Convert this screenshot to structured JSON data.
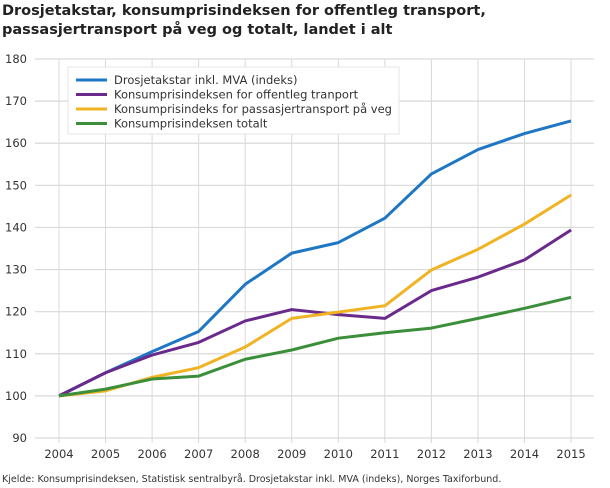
{
  "chart_data": {
    "type": "line",
    "title": "Drosjetakstar, konsumprisindeksen for offentleg transport, passasjertransport på veg og totalt, landet i alt",
    "source": "Kjelde: Konsumprisindeksen, Statistisk sentralbyrå. Drosjetakstar inkl. MVA (indeks), Norges Taxiforbund.",
    "x": [
      "2004",
      "2005",
      "2006",
      "2007",
      "2008",
      "2009",
      "2010",
      "2011",
      "2012",
      "2013",
      "2014",
      "2015"
    ],
    "ylim": [
      90,
      180
    ],
    "yticks": [
      90,
      100,
      110,
      120,
      130,
      140,
      150,
      160,
      170,
      180
    ],
    "grid": true,
    "legend_position": "top-left",
    "series": [
      {
        "name": "Drosjetakstar inkl. MVA (indeks)",
        "color": "#1f77c4",
        "values": [
          100,
          105.5,
          110.5,
          115.3,
          126.5,
          133.9,
          136.4,
          142.2,
          152.7,
          158.5,
          162.3,
          165.3
        ]
      },
      {
        "name": "Konsumprisindeksen for offentleg tranport",
        "color": "#6a2a8c",
        "values": [
          100,
          105.5,
          109.7,
          112.7,
          117.8,
          120.5,
          119.3,
          118.4,
          125.0,
          128.2,
          132.3,
          139.4
        ]
      },
      {
        "name": "Konsumprisindeks for passasjertransport på veg",
        "color": "#f0b323",
        "values": [
          100,
          101.2,
          104.4,
          106.7,
          111.6,
          118.4,
          119.9,
          121.4,
          129.9,
          134.8,
          140.8,
          147.7
        ]
      },
      {
        "name": "Konsumprisindeksen totalt",
        "color": "#3b8f3b",
        "values": [
          100,
          101.6,
          104.0,
          104.7,
          108.7,
          110.9,
          113.7,
          115.0,
          116.1,
          118.4,
          120.8,
          123.4
        ]
      }
    ]
  }
}
